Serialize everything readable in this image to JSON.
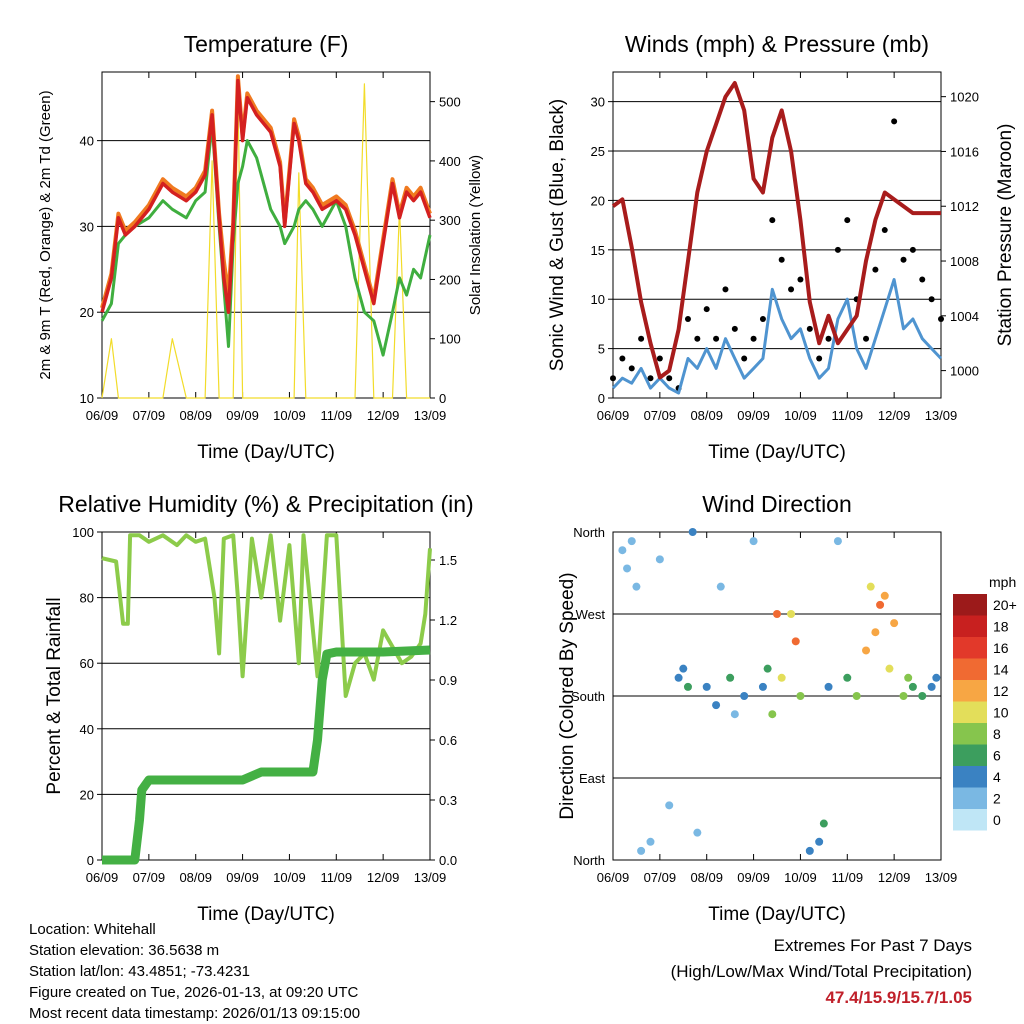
{
  "station_info": {
    "location": "Location: Whitehall",
    "elevation": "Station elevation: 36.5638 m",
    "latlon": "Station lat/lon: 43.4851; -73.4231",
    "created": "Figure created on Tue, 2026-01-13, at 09:20 UTC",
    "latest": "Most recent data timestamp: 2026/01/13 09:15:00"
  },
  "extremes": {
    "title": "Extremes For Past 7 Days",
    "subtitle": "(High/Low/Max Wind/Total Precipitation)",
    "values": "47.4/15.9/15.7/1.05",
    "color": "#c0202a"
  },
  "colors": {
    "temp_2m": "#d42020",
    "temp_9m": "#f07a20",
    "dewpoint": "#3fae3f",
    "solar": "#f2dc2a",
    "wind_sonic": "#4f94d0",
    "gust": "#000000",
    "pressure": "#a81c1c",
    "rh": "#8ccb4a",
    "precip": "#44b044"
  },
  "chart_data": [
    {
      "type": "line",
      "title": "Temperature (F)",
      "xlabel": "Time (Day/UTC)",
      "ylabel": "2m & 9m T (Red, Orange) & 2m Td (Green)",
      "ylabel_right": "Solar Insolation (Yellow)",
      "x_ticks": [
        "06/09",
        "07/09",
        "08/09",
        "09/09",
        "10/09",
        "11/09",
        "12/09",
        "13/09"
      ],
      "x": [
        0,
        0.2,
        0.35,
        0.5,
        0.7,
        1.0,
        1.3,
        1.5,
        1.8,
        2.0,
        2.2,
        2.35,
        2.5,
        2.6,
        2.7,
        2.8,
        2.9,
        3.0,
        3.1,
        3.3,
        3.6,
        3.8,
        3.9,
        4.1,
        4.2,
        4.35,
        4.5,
        4.7,
        5.0,
        5.2,
        5.4,
        5.6,
        5.8,
        6.0,
        6.2,
        6.35,
        6.5,
        6.65,
        6.8,
        7.0
      ],
      "ylim": [
        10,
        48
      ],
      "y_ticks": [
        10,
        20,
        30,
        40
      ],
      "ylim_right": [
        0,
        550
      ],
      "y_ticks_right": [
        0,
        100,
        200,
        300,
        400,
        500
      ],
      "series": [
        {
          "name": "2m T",
          "axis": "left",
          "values": [
            20,
            24,
            31,
            29,
            30,
            32,
            35,
            34,
            33,
            34,
            36,
            43,
            31,
            24,
            20,
            30,
            47,
            40,
            45,
            43,
            41,
            37,
            30,
            42,
            40,
            35,
            34,
            32,
            33,
            32,
            29,
            25,
            21,
            28,
            35,
            31,
            34,
            33,
            34,
            31
          ]
        },
        {
          "name": "9m T",
          "axis": "left",
          "values": [
            20.5,
            24.5,
            31.5,
            29.5,
            30.5,
            32.5,
            35.5,
            34.5,
            33.5,
            34.5,
            36.5,
            43.5,
            31.5,
            26,
            22,
            30.5,
            47.5,
            40.5,
            45.5,
            43.5,
            41.5,
            37.5,
            30.5,
            42.5,
            40.5,
            35.5,
            34.5,
            32.5,
            33.5,
            32.5,
            29.5,
            25.5,
            21.5,
            28.5,
            35.5,
            31.5,
            34.5,
            33.5,
            34.5,
            31.5
          ]
        },
        {
          "name": "2m Td",
          "axis": "left",
          "values": [
            19,
            21,
            28,
            29,
            30,
            31,
            33,
            32,
            31,
            33,
            34,
            42,
            30,
            23,
            16,
            28,
            35,
            37,
            40,
            38,
            32,
            30,
            28,
            30,
            32,
            33,
            32,
            30,
            33,
            30,
            24,
            20,
            19,
            15,
            20,
            24,
            22,
            25,
            24,
            29
          ]
        },
        {
          "name": "Solar Insolation",
          "axis": "right",
          "values": [
            0,
            100,
            0,
            0,
            0,
            0,
            0,
            100,
            0,
            0,
            0,
            400,
            0,
            0,
            0,
            0,
            520,
            0,
            0,
            0,
            0,
            0,
            0,
            0,
            380,
            0,
            0,
            0,
            0,
            0,
            0,
            530,
            0,
            0,
            0,
            320,
            0,
            0,
            0,
            0
          ]
        }
      ]
    },
    {
      "type": "line",
      "title": "Winds (mph) & Pressure (mb)",
      "xlabel": "Time (Day/UTC)",
      "ylabel": "Sonic Wind & Gust (Blue, Black)",
      "ylabel_right": "Station Pressure (Maroon)",
      "x_ticks": [
        "06/09",
        "07/09",
        "08/09",
        "09/09",
        "10/09",
        "11/09",
        "12/09",
        "13/09"
      ],
      "x": [
        0,
        0.2,
        0.4,
        0.6,
        0.8,
        1.0,
        1.2,
        1.4,
        1.6,
        1.8,
        2.0,
        2.2,
        2.4,
        2.6,
        2.8,
        3.0,
        3.2,
        3.4,
        3.6,
        3.8,
        4.0,
        4.2,
        4.4,
        4.6,
        4.8,
        5.0,
        5.2,
        5.4,
        5.6,
        5.8,
        6.0,
        6.2,
        6.4,
        6.6,
        6.8,
        7.0
      ],
      "ylim": [
        0,
        33
      ],
      "y_ticks": [
        0,
        5,
        10,
        15,
        20,
        25,
        30
      ],
      "ylim_right": [
        998.0,
        1021.8
      ],
      "y_ticks_right": [
        1000,
        1004,
        1008,
        1012,
        1016,
        1020
      ],
      "series": [
        {
          "name": "Sonic Wind",
          "axis": "left",
          "values": [
            1,
            2,
            1.5,
            3,
            1,
            2,
            1,
            0.5,
            4,
            3,
            5,
            3,
            6,
            4,
            2,
            3,
            4,
            11,
            8,
            6,
            7,
            4,
            2,
            3,
            8,
            10,
            5,
            3,
            6,
            9,
            12,
            7,
            8,
            6,
            5,
            4
          ]
        },
        {
          "name": "Gust",
          "axis": "left",
          "values": [
            2,
            4,
            3,
            6,
            2,
            4,
            2,
            1,
            8,
            6,
            9,
            6,
            11,
            7,
            4,
            6,
            8,
            18,
            14,
            11,
            12,
            7,
            4,
            6,
            15,
            18,
            10,
            6,
            13,
            17,
            28,
            14,
            15,
            12,
            10,
            8
          ]
        },
        {
          "name": "Station Pressure",
          "axis": "right",
          "values": [
            1012,
            1012.5,
            1009,
            1005,
            1002,
            999.5,
            1000,
            1003,
            1008,
            1013,
            1016,
            1018,
            1020,
            1021,
            1019,
            1014,
            1013,
            1017,
            1019,
            1016,
            1011,
            1005,
            1002,
            1004,
            1002,
            1003,
            1004,
            1008,
            1011,
            1013,
            1012.5,
            1012,
            1011.5,
            1011.5,
            1011.5,
            1011.5
          ]
        }
      ]
    },
    {
      "type": "line",
      "title": "Relative Humidity (%) & Precipitation (in)",
      "xlabel": "Time (Day/UTC)",
      "ylabel": "Percent & Total Rainfall",
      "x_ticks": [
        "06/09",
        "07/09",
        "08/09",
        "09/09",
        "10/09",
        "11/09",
        "12/09",
        "13/09"
      ],
      "ylim": [
        0,
        100
      ],
      "y_ticks": [
        0,
        20,
        40,
        60,
        80,
        100
      ],
      "ylim_right": [
        0.0,
        1.64
      ],
      "y_ticks_right": [
        "0.0",
        "0.3",
        "0.6",
        "0.9",
        "1.2",
        "1.5"
      ],
      "series": [
        {
          "name": "Relative Humidity",
          "axis": "left",
          "x": [
            0,
            0.3,
            0.45,
            0.55,
            0.6,
            0.8,
            1.0,
            1.3,
            1.6,
            1.8,
            2.0,
            2.2,
            2.4,
            2.5,
            2.6,
            2.8,
            2.9,
            3.0,
            3.2,
            3.4,
            3.6,
            3.8,
            4.0,
            4.2,
            4.3,
            4.6,
            4.8,
            5.0,
            5.2,
            5.4,
            5.6,
            5.8,
            6.0,
            6.2,
            6.4,
            6.6,
            6.8,
            6.9,
            7.0
          ],
          "values": [
            92,
            91,
            72,
            72,
            99,
            99,
            97,
            99,
            96,
            99,
            97,
            98,
            80,
            63,
            98,
            99,
            80,
            56,
            98,
            80,
            99,
            73,
            96,
            60,
            99,
            56,
            99,
            99,
            50,
            60,
            63,
            55,
            70,
            65,
            60,
            62,
            66,
            75,
            95
          ]
        },
        {
          "name": "Total Precipitation",
          "axis": "right",
          "x": [
            0,
            0.7,
            0.8,
            0.85,
            1.0,
            1.5,
            2.0,
            2.5,
            3.0,
            3.3,
            3.4,
            4.0,
            4.5,
            4.6,
            4.7,
            4.8,
            5.0,
            6.0,
            7.0
          ],
          "values": [
            0,
            0,
            0.2,
            0.35,
            0.4,
            0.4,
            0.4,
            0.4,
            0.4,
            0.43,
            0.44,
            0.44,
            0.44,
            0.6,
            0.9,
            1.03,
            1.04,
            1.04,
            1.05
          ]
        }
      ]
    },
    {
      "type": "scatter",
      "title": "Wind Direction",
      "xlabel": "Time (Day/UTC)",
      "ylabel": "Direction (Colored By Speed)",
      "x_ticks": [
        "06/09",
        "07/09",
        "08/09",
        "09/09",
        "10/09",
        "11/09",
        "12/09",
        "13/09"
      ],
      "y_ticks": [
        "North",
        "East",
        "South",
        "West",
        "North"
      ],
      "ylim": [
        0,
        360
      ],
      "legend_title": "mph",
      "legend_labels": [
        "20+",
        "18",
        "16",
        "14",
        "12",
        "10",
        "8",
        "6",
        "4",
        "2",
        "0"
      ],
      "legend_colors": [
        "#9c1a1a",
        "#c8201f",
        "#e2392a",
        "#f06a32",
        "#f7a644",
        "#e3de5a",
        "#86c54d",
        "#3c9e5e",
        "#3a82c2",
        "#7ab8e3",
        "#bfe6f6"
      ],
      "series": [
        {
          "name": "Direction",
          "x": [
            0.2,
            0.3,
            0.4,
            0.5,
            0.6,
            0.8,
            1.0,
            1.2,
            1.4,
            1.5,
            1.6,
            1.7,
            1.8,
            2.0,
            2.2,
            2.3,
            2.5,
            2.6,
            2.8,
            3.0,
            3.2,
            3.3,
            3.4,
            3.5,
            3.6,
            3.8,
            3.9,
            4.0,
            4.2,
            4.4,
            4.5,
            4.6,
            4.8,
            5.0,
            5.2,
            5.4,
            5.5,
            5.6,
            5.7,
            5.8,
            5.9,
            6.0,
            6.2,
            6.3,
            6.4,
            6.6,
            6.8,
            6.9
          ],
          "y": [
            340,
            320,
            350,
            300,
            10,
            20,
            330,
            60,
            200,
            210,
            190,
            360,
            30,
            190,
            170,
            300,
            200,
            160,
            180,
            350,
            190,
            210,
            160,
            270,
            200,
            270,
            240,
            180,
            10,
            20,
            40,
            190,
            350,
            200,
            180,
            230,
            300,
            250,
            280,
            290,
            210,
            260,
            180,
            200,
            190,
            180,
            190,
            200
          ],
          "speed": [
            1,
            1,
            2,
            1,
            1,
            2,
            1,
            1,
            3,
            4,
            5,
            3,
            2,
            4,
            3,
            2,
            5,
            2,
            3,
            2,
            4,
            6,
            8,
            13,
            10,
            9,
            13,
            8,
            3,
            4,
            5,
            4,
            2,
            6,
            8,
            12,
            10,
            12,
            13,
            11,
            9,
            12,
            8,
            7,
            6,
            5,
            4,
            3
          ]
        }
      ]
    }
  ]
}
